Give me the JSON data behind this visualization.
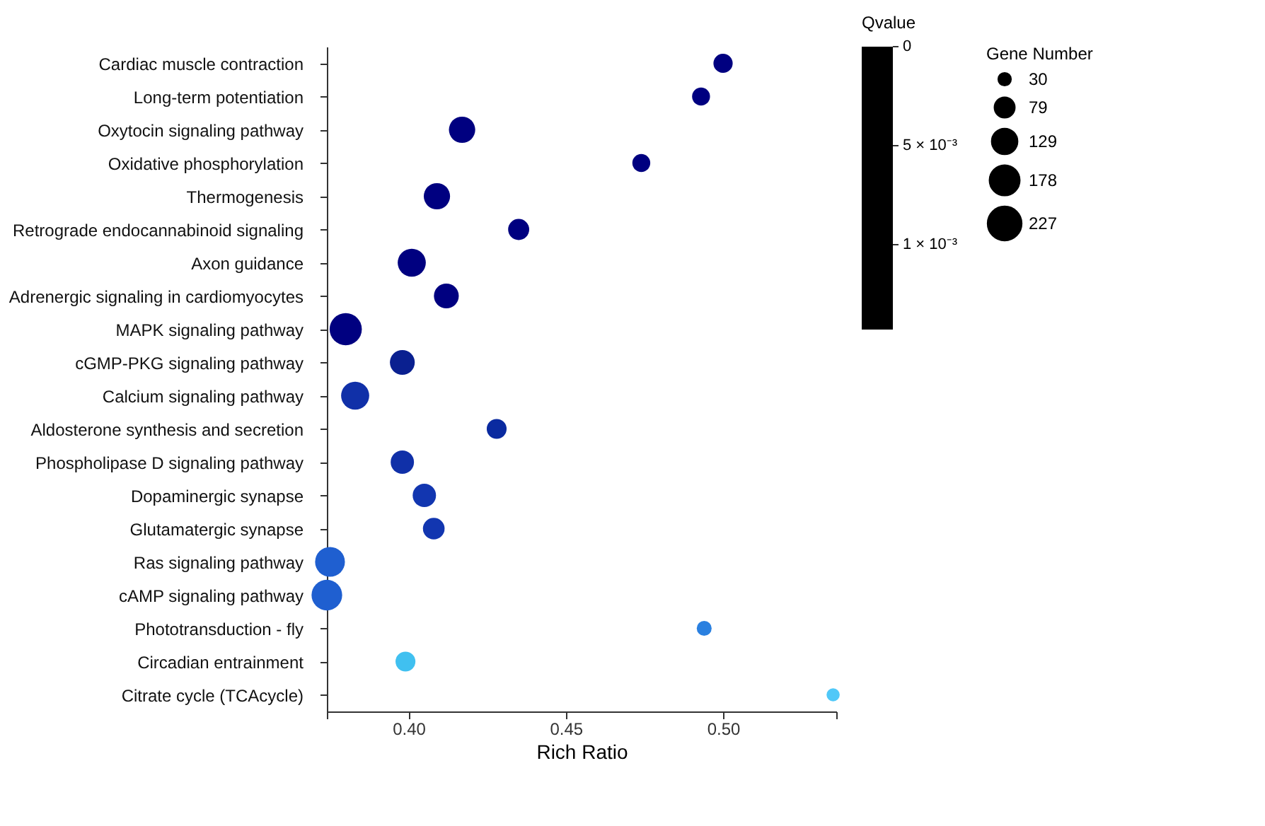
{
  "chart_data": {
    "type": "bubble",
    "xlabel": "Rich Ratio",
    "legend_title": "Gene Number",
    "clabel": "Qvalue",
    "categories": [
      "Cardiac muscle contraction",
      "Long-term potentiation",
      "Oxytocin signaling pathway",
      "Oxidative phosphorylation",
      "Thermogenesis",
      "Retrograde endocannabinoid signaling",
      "Axon guidance",
      "Adrenergic signaling in cardiomyocytes",
      "MAPK signaling pathway",
      "cGMP-PKG signaling pathway",
      "Calcium signaling pathway",
      "Aldosterone synthesis and secretion",
      "Phospholipase D signaling pathway",
      "Dopaminergic synapse",
      "Glutamatergic synapse",
      "Ras signaling pathway",
      "cAMP signaling pathway",
      "Phototransduction - fly",
      "Circadian entrainment",
      "Citrate cycle (TCAcycle)"
    ],
    "values": [
      0.5,
      0.493,
      0.417,
      0.474,
      0.409,
      0.435,
      0.401,
      0.412,
      0.38,
      0.398,
      0.383,
      0.428,
      0.398,
      0.405,
      0.408,
      0.375,
      0.374,
      0.494,
      0.399,
      0.535
    ],
    "sizes": [
      75,
      65,
      140,
      65,
      140,
      90,
      160,
      125,
      210,
      125,
      160,
      80,
      110,
      110,
      95,
      180,
      190,
      45,
      80,
      35
    ],
    "size_legend": [
      30,
      79,
      129,
      178,
      227
    ],
    "colors": [
      "#000080",
      "#000080",
      "#000080",
      "#000080",
      "#000080",
      "#000080",
      "#000080",
      "#000080",
      "#000080",
      "#0a2090",
      "#1030a8",
      "#0a2aa0",
      "#1030a8",
      "#1236b0",
      "#1236b0",
      "#1f5fd0",
      "#1f5fd0",
      "#2a80e0",
      "#40c0f0",
      "#50c8f8"
    ],
    "xlim": [
      0.374,
      0.536
    ],
    "xticks": [
      {
        "value": 0.374,
        "label": null
      },
      {
        "value": 0.4,
        "label": "0.40"
      },
      {
        "value": 0.45,
        "label": "0.45"
      },
      {
        "value": 0.5,
        "label": "0.50"
      },
      {
        "value": 0.536,
        "label": null
      }
    ],
    "annotations": [
      "0",
      "5 × 10⁻³",
      "1 × 10⁻³"
    ],
    "grid": false,
    "marker": "circle",
    "orientation": "horizontal"
  }
}
